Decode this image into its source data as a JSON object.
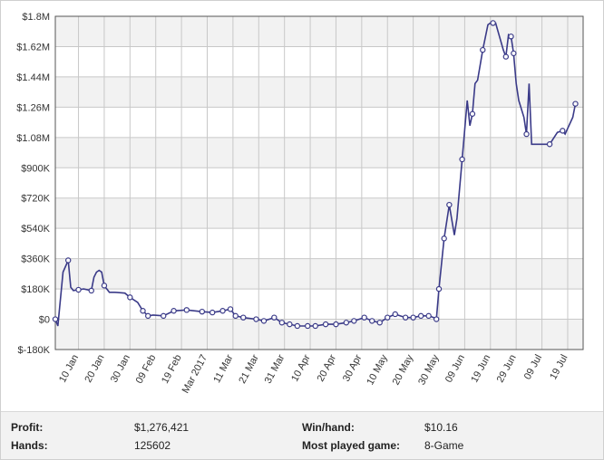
{
  "chart_data": {
    "type": "line",
    "title": "",
    "xlabel": "",
    "ylabel": "",
    "ylim": [
      -180000,
      1800000
    ],
    "yticks": [
      -180000,
      0,
      180000,
      360000,
      540000,
      720000,
      900000,
      1080000,
      1260000,
      1440000,
      1620000,
      1800000
    ],
    "yticklabels": [
      "$-180K",
      "$0",
      "$180K",
      "$360K",
      "$540K",
      "$720K",
      "$900K",
      "$1.08M",
      "$1.26M",
      "$1.44M",
      "$1.62M",
      "$1.8M"
    ],
    "xlim": [
      "2017-01-01",
      "2017-07-25"
    ],
    "xticks": [
      "2017-01-10",
      "2017-01-20",
      "2017-01-30",
      "2017-02-09",
      "2017-02-19",
      "2017-03-01",
      "2017-03-11",
      "2017-03-21",
      "2017-03-31",
      "2017-04-10",
      "2017-04-20",
      "2017-04-30",
      "2017-05-10",
      "2017-05-20",
      "2017-05-30",
      "2017-06-09",
      "2017-06-19",
      "2017-06-29",
      "2017-07-09",
      "2017-07-19"
    ],
    "xticklabels": [
      "10 Jan",
      "20 Jan",
      "30 Jan",
      "09 Feb",
      "19 Feb",
      "Mar 2017",
      "11 Mar",
      "21 Mar",
      "31 Mar",
      "10 Apr",
      "20 Apr",
      "30 Apr",
      "10 May",
      "20 May",
      "30 May",
      "09 Jun",
      "19 Jun",
      "29 Jun",
      "09 Jul",
      "19 Jul"
    ],
    "grid": true,
    "legend": "none",
    "line_color": "#3a3a88",
    "series": [
      {
        "x": [
          "2017-01-01",
          "2017-01-02",
          "2017-01-04",
          "2017-01-06",
          "2017-01-07",
          "2017-01-08",
          "2017-01-10",
          "2017-01-12",
          "2017-01-15",
          "2017-01-16",
          "2017-01-17",
          "2017-01-18",
          "2017-01-19",
          "2017-01-20",
          "2017-01-22",
          "2017-01-24",
          "2017-01-28",
          "2017-01-30",
          "2017-02-02",
          "2017-02-04",
          "2017-02-06",
          "2017-02-08",
          "2017-02-12",
          "2017-02-16",
          "2017-02-21",
          "2017-02-27",
          "2017-03-03",
          "2017-03-07",
          "2017-03-10",
          "2017-03-12",
          "2017-03-15",
          "2017-03-20",
          "2017-03-23",
          "2017-03-27",
          "2017-03-30",
          "2017-04-02",
          "2017-04-05",
          "2017-04-09",
          "2017-04-12",
          "2017-04-16",
          "2017-04-20",
          "2017-04-24",
          "2017-04-27",
          "2017-05-01",
          "2017-05-04",
          "2017-05-07",
          "2017-05-10",
          "2017-05-13",
          "2017-05-17",
          "2017-05-20",
          "2017-05-23",
          "2017-05-26",
          "2017-05-28",
          "2017-05-29",
          "2017-05-30",
          "2017-06-01",
          "2017-06-03",
          "2017-06-05",
          "2017-06-06",
          "2017-06-08",
          "2017-06-10",
          "2017-06-11",
          "2017-06-12",
          "2017-06-13",
          "2017-06-14",
          "2017-06-16",
          "2017-06-18",
          "2017-06-19",
          "2017-06-20",
          "2017-06-21",
          "2017-06-24",
          "2017-06-25",
          "2017-06-26",
          "2017-06-27",
          "2017-06-28",
          "2017-06-29",
          "2017-06-30",
          "2017-07-02",
          "2017-07-03",
          "2017-07-04",
          "2017-07-05",
          "2017-07-06",
          "2017-07-08",
          "2017-07-10",
          "2017-07-12",
          "2017-07-15",
          "2017-07-17",
          "2017-07-18",
          "2017-07-21",
          "2017-07-22"
        ],
        "y": [
          0,
          -40000,
          280000,
          350000,
          190000,
          170000,
          175000,
          180000,
          170000,
          250000,
          280000,
          290000,
          280000,
          200000,
          160000,
          160000,
          155000,
          130000,
          100000,
          50000,
          20000,
          25000,
          20000,
          50000,
          55000,
          45000,
          40000,
          50000,
          60000,
          20000,
          10000,
          0,
          -10000,
          10000,
          -20000,
          -30000,
          -40000,
          -40000,
          -40000,
          -30000,
          -30000,
          -20000,
          -10000,
          10000,
          -10000,
          -20000,
          10000,
          30000,
          10000,
          10000,
          20000,
          20000,
          10000,
          0,
          180000,
          480000,
          680000,
          500000,
          600000,
          950000,
          1300000,
          1150000,
          1220000,
          1400000,
          1420000,
          1600000,
          1750000,
          1760000,
          1760000,
          1760000,
          1600000,
          1560000,
          1690000,
          1680000,
          1580000,
          1400000,
          1300000,
          1200000,
          1100000,
          1400000,
          1040000,
          1040000,
          1040000,
          1040000,
          1040000,
          1110000,
          1120000,
          1100000,
          1200000,
          1280000
        ],
        "markers": [
          "2017-01-01",
          "2017-01-06",
          "2017-01-10",
          "2017-01-15",
          "2017-01-20",
          "2017-01-30",
          "2017-02-04",
          "2017-02-06",
          "2017-02-12",
          "2017-02-16",
          "2017-02-21",
          "2017-02-27",
          "2017-03-03",
          "2017-03-07",
          "2017-03-10",
          "2017-03-12",
          "2017-03-15",
          "2017-03-20",
          "2017-03-23",
          "2017-03-27",
          "2017-03-30",
          "2017-04-02",
          "2017-04-05",
          "2017-04-09",
          "2017-04-12",
          "2017-04-16",
          "2017-04-20",
          "2017-04-24",
          "2017-04-27",
          "2017-05-01",
          "2017-05-04",
          "2017-05-07",
          "2017-05-10",
          "2017-05-13",
          "2017-05-17",
          "2017-05-20",
          "2017-05-23",
          "2017-05-26",
          "2017-05-29",
          "2017-05-30",
          "2017-06-01",
          "2017-06-03",
          "2017-06-08",
          "2017-06-12",
          "2017-06-16",
          "2017-06-20",
          "2017-06-25",
          "2017-06-27",
          "2017-06-28",
          "2017-07-03",
          "2017-07-12",
          "2017-07-17",
          "2017-07-22"
        ]
      }
    ]
  },
  "stats": {
    "profit_label": "Profit:",
    "profit_value": "$1,276,421",
    "winhand_label": "Win/hand:",
    "winhand_value": "$10.16",
    "hands_label": "Hands:",
    "hands_value": "125602",
    "game_label": "Most played game:",
    "game_value": "8-Game"
  }
}
